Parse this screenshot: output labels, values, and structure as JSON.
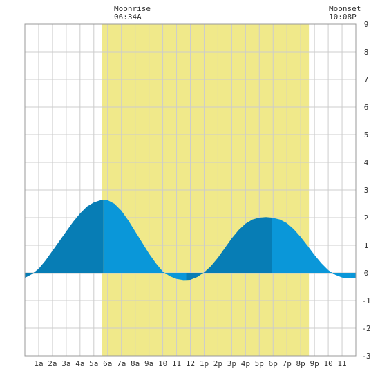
{
  "header": {
    "moonrise_label": "Moonrise",
    "moonrise_time": "06:34A",
    "moonset_label": "Moonset",
    "moonset_time": "10:08P"
  },
  "colors": {
    "background": "#ffffff",
    "grid": "#cccccc",
    "frame": "#999999",
    "daylight_band": "#f0e98a",
    "tide_light": "#0a97d9",
    "tide_dark": "#077db5"
  },
  "chart_data": {
    "type": "area",
    "title": "",
    "xlabel": "",
    "ylabel": "",
    "xlim": [
      0,
      24
    ],
    "ylim": [
      -3,
      9
    ],
    "grid": true,
    "x_tick_labels": [
      "1a",
      "2a",
      "3a",
      "4a",
      "5a",
      "6a",
      "7a",
      "8a",
      "9a",
      "10",
      "11",
      "12",
      "1p",
      "2p",
      "3p",
      "4p",
      "5p",
      "6p",
      "7p",
      "8p",
      "9p",
      "10",
      "11"
    ],
    "y_tick_labels": [
      "-3",
      "-2",
      "-1",
      "0",
      "1",
      "2",
      "3",
      "4",
      "5",
      "6",
      "7",
      "8",
      "9"
    ],
    "shaded_band": {
      "from_hour": 5.6,
      "to_hour": 20.6
    },
    "series": [
      {
        "x": [
          0,
          0.5,
          1,
          1.5,
          2,
          2.5,
          3,
          3.5,
          4,
          4.5,
          5,
          5.5,
          5.7,
          6,
          6.5,
          7,
          7.5,
          8,
          8.5,
          9,
          9.5,
          10,
          10.5,
          11,
          11.5,
          12,
          12.5,
          13,
          13.5,
          14,
          14.5,
          15,
          15.5,
          16,
          16.5,
          17,
          17.5,
          17.9,
          18,
          18.5,
          19,
          19.5,
          20,
          20.5,
          21,
          21.5,
          22,
          22.5,
          23,
          23.5,
          24
        ],
        "y": [
          -0.18,
          -0.05,
          0.15,
          0.45,
          0.8,
          1.15,
          1.5,
          1.85,
          2.15,
          2.4,
          2.55,
          2.63,
          2.65,
          2.63,
          2.5,
          2.25,
          1.9,
          1.5,
          1.1,
          0.7,
          0.35,
          0.05,
          -0.12,
          -0.22,
          -0.26,
          -0.25,
          -0.15,
          0.02,
          0.25,
          0.55,
          0.9,
          1.25,
          1.55,
          1.78,
          1.93,
          2.0,
          2.02,
          2.0,
          1.99,
          1.93,
          1.8,
          1.58,
          1.3,
          0.98,
          0.65,
          0.35,
          0.1,
          -0.07,
          -0.17,
          -0.2,
          -0.2
        ],
        "high_tide_hours": [
          5.7,
          17.9
        ],
        "low_tide_hours": [
          11.7,
          23.6
        ]
      }
    ]
  }
}
